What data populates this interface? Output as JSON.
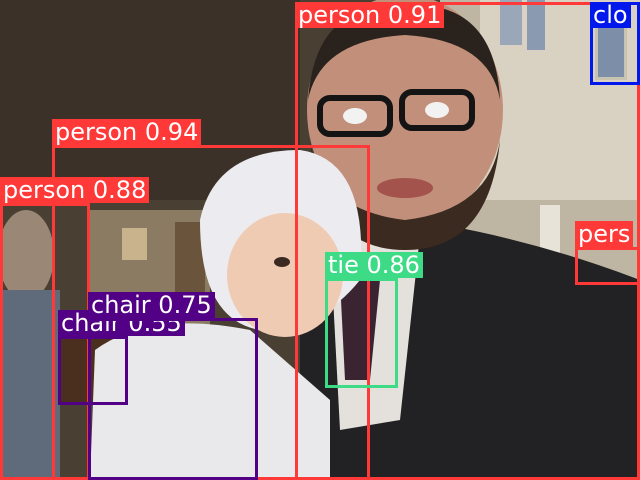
{
  "detections": [
    {
      "label": "person",
      "score": "0.91",
      "color": "#ff3838"
    },
    {
      "label": "clo",
      "score": "",
      "color": "#0018ec"
    },
    {
      "label": "person",
      "score": "0.94",
      "color": "#ff3838"
    },
    {
      "label": "person",
      "score": "0.88",
      "color": "#ff3838"
    },
    {
      "label": "pers",
      "score": "",
      "color": "#ff3838"
    },
    {
      "label": "tie",
      "score": "0.86",
      "color": "#3ddb86"
    },
    {
      "label": "chair",
      "score": "0.75",
      "color": "#520085"
    },
    {
      "label": "chair",
      "score": "0.55",
      "color": "#520085"
    }
  ]
}
